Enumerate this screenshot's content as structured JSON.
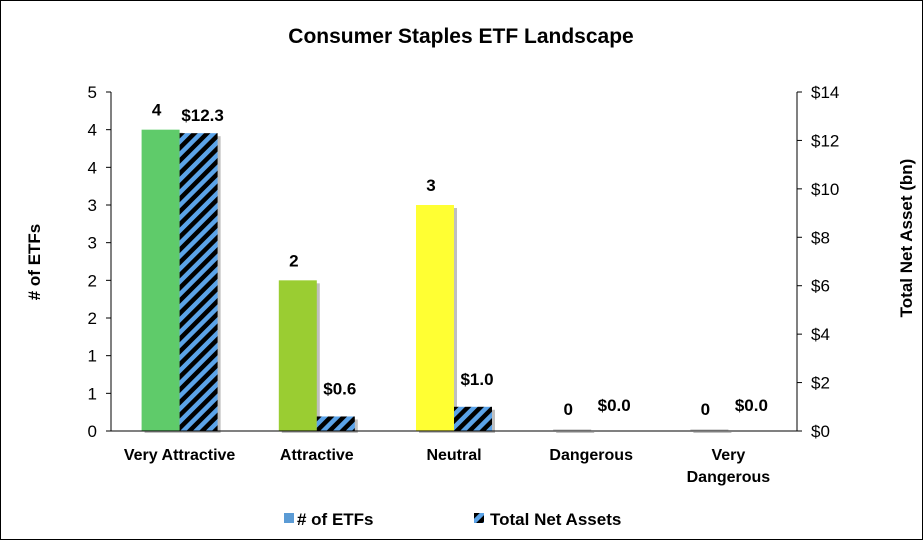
{
  "chart_data": {
    "type": "bar",
    "title": "Consumer Staples ETF Landscape",
    "categories": [
      "Very Attractive",
      "Attractive",
      "Neutral",
      "Dangerous",
      "Very Dangerous"
    ],
    "category_lines": [
      [
        "Very Attractive"
      ],
      [
        "Attractive"
      ],
      [
        "Neutral"
      ],
      [
        "Dangerous"
      ],
      [
        "Very",
        "Dangerous"
      ]
    ],
    "series": [
      {
        "name": "# of ETFs",
        "axis": "left",
        "values": [
          4,
          2,
          3,
          0,
          0
        ],
        "labels": [
          "4",
          "2",
          "3",
          "0",
          "0"
        ],
        "colors": [
          "#5fcb6a",
          "#9acd32",
          "#ffff33",
          "#d9d9d9",
          "#d9d9d9"
        ],
        "legend_color": "#5b9bd5"
      },
      {
        "name": "Total Net Assets",
        "axis": "right",
        "values": [
          12.3,
          0.6,
          1.0,
          0.0,
          0.0
        ],
        "labels": [
          "$12.3",
          "$0.6",
          "$1.0",
          "$0.0",
          "$0.0"
        ],
        "pattern": "diagonal-stripes",
        "pattern_colors": [
          "#000000",
          "#5ba3e8"
        ]
      }
    ],
    "left_axis": {
      "label": "# of ETFs",
      "range": [
        0,
        4.5
      ],
      "tick_labels": [
        "0",
        "1",
        "1",
        "2",
        "2",
        "3",
        "3",
        "4",
        "4",
        "5"
      ]
    },
    "right_axis": {
      "label": "Total Net Asset (bn)",
      "range": [
        0,
        14
      ],
      "tick_labels": [
        "$0",
        "$2",
        "$4",
        "$6",
        "$8",
        "$10",
        "$12",
        "$14"
      ]
    },
    "legend_position": "bottom",
    "grid": false
  }
}
